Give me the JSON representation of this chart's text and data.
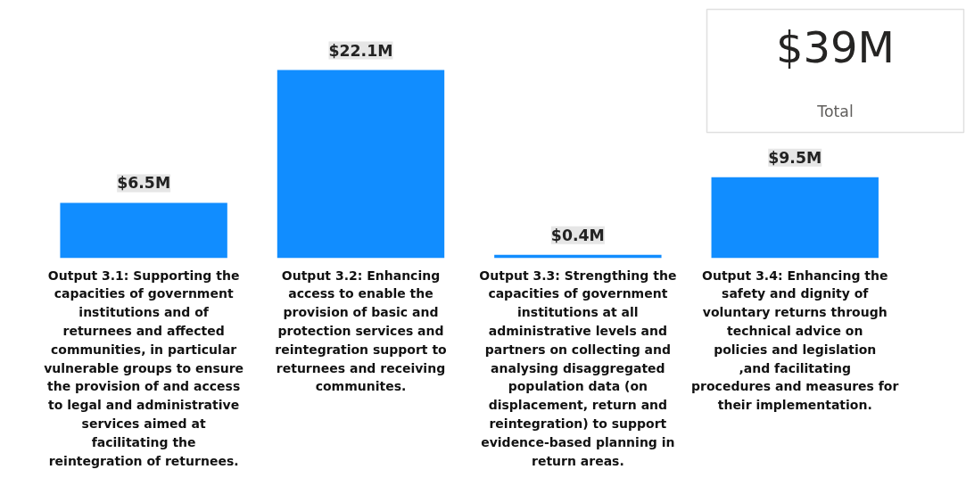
{
  "chart_data": {
    "type": "bar",
    "categories": [
      "Output 3.1: Supporting the capacities of government institutions and of returnees and affected communities, in particular vulnerable groups to ensure the provision of and access to legal and administrative services aimed at facilitating the reintegration of returnees.",
      "Output 3.2: Enhancing access to enable the provision of basic and protection services and reintegration support to returnees and receiving communites.",
      "Output 3.3: Strengthing the capacities of government institutions at all administrative levels and partners on collecting and analysing disaggregated population data (on displacement, return and reintegration) to support evidence-based planning in return areas.",
      "Output 3.4: Enhancing the safety and dignity of voluntary returns through technical advice on policies and legislation ,and facilitating procedures and measures for their implementation."
    ],
    "values": [
      6.5,
      22.1,
      0.4,
      9.5
    ],
    "value_labels": [
      "$6.5M",
      "$22.1M",
      "$0.4M",
      "$9.5M"
    ],
    "color": "#118dff",
    "tick_labels": "x",
    "annotations": [
      "$39M",
      "Total"
    ]
  }
}
